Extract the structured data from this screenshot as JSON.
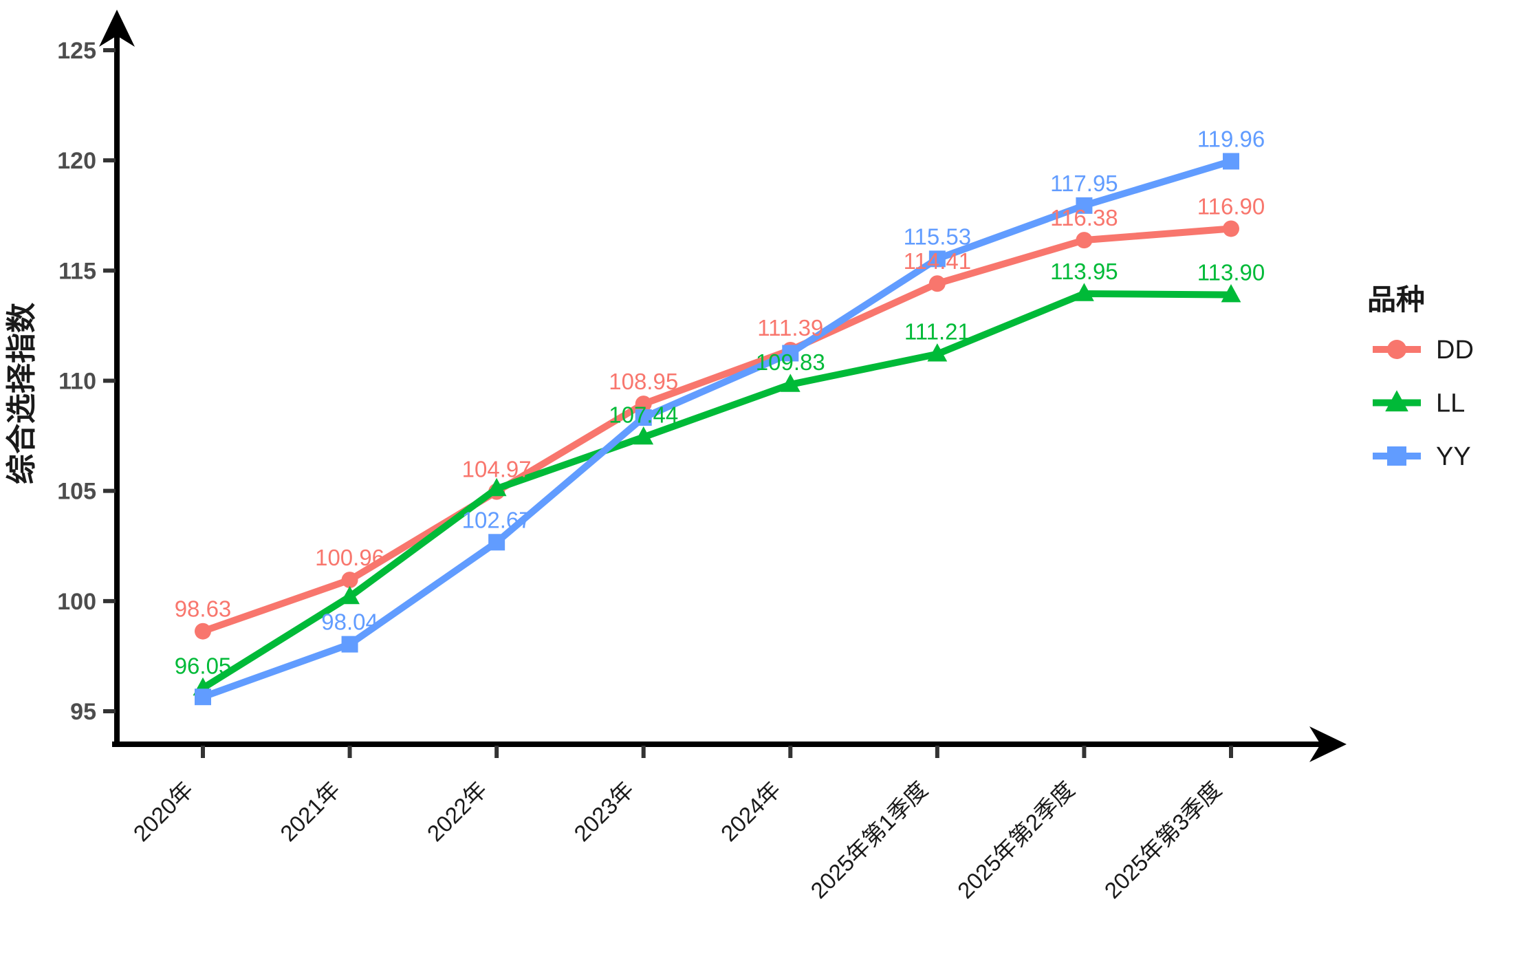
{
  "chart_data": {
    "type": "line",
    "title": "",
    "xlabel": "",
    "ylabel": "综合选择指数",
    "legend_title": "品种",
    "legend_position": "right",
    "grid": false,
    "background": "#ffffff",
    "axis_color": "#000000",
    "tick_label_color": "#4d4d4d",
    "category_label_color": "#1a1a1a",
    "ylim": [
      95,
      125
    ],
    "y_ticks": [
      95,
      100,
      105,
      110,
      115,
      120,
      125
    ],
    "categories": [
      "2020年",
      "2021年",
      "2022年",
      "2023年",
      "2024年",
      "2025年第1季度",
      "2025年第2季度",
      "2025年第3季度"
    ],
    "series": [
      {
        "name": "DD",
        "color": "#F8766D",
        "marker": "circle",
        "values": [
          98.63,
          100.96,
          104.97,
          108.95,
          111.39,
          114.41,
          116.38,
          116.9
        ],
        "labels": [
          "98.63",
          "100.96",
          "104.97",
          "108.95",
          "111.39",
          "114.41",
          "116.38",
          "116.90"
        ]
      },
      {
        "name": "LL",
        "color": "#00BA38",
        "marker": "triangle",
        "values": [
          96.05,
          100.2,
          105.1,
          107.44,
          109.83,
          111.21,
          113.95,
          113.9
        ],
        "labels": [
          "96.05",
          null,
          null,
          "107.44",
          "109.83",
          "111.21",
          "113.95",
          "113.90"
        ]
      },
      {
        "name": "YY",
        "color": "#619CFF",
        "marker": "square",
        "values": [
          95.65,
          98.04,
          102.67,
          108.33,
          111.25,
          115.53,
          117.95,
          119.96
        ],
        "labels": [
          null,
          "98.04",
          "102.67",
          null,
          null,
          "115.53",
          "117.95",
          "119.96"
        ]
      }
    ]
  }
}
